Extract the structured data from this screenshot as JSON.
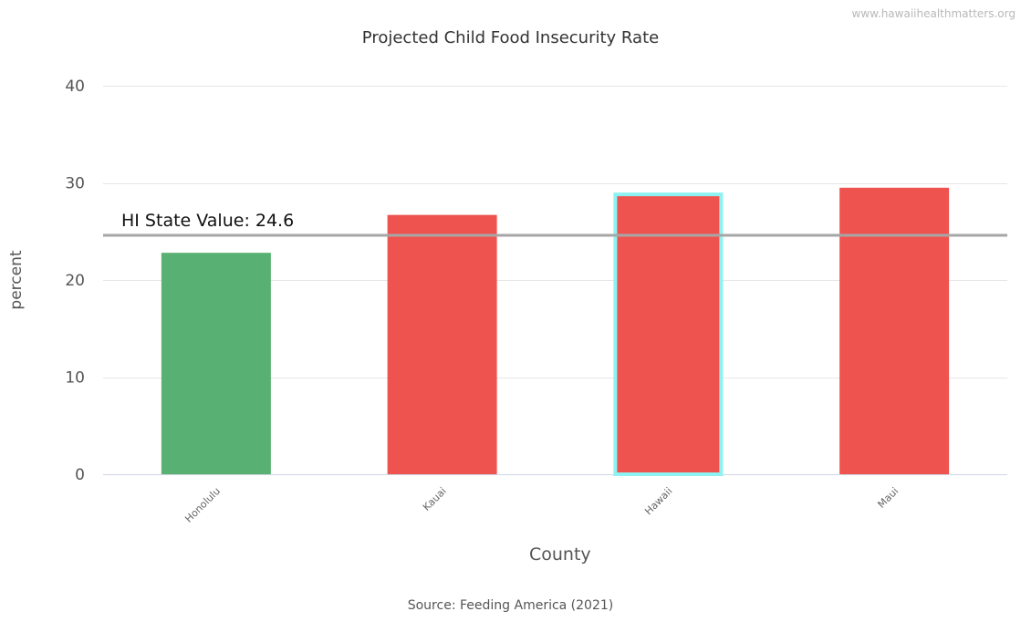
{
  "watermark": "www.hawaiihealthmatters.org",
  "source": "Source: Feeding America (2021)",
  "chart_data": {
    "type": "bar",
    "title": "Projected Child Food Insecurity Rate",
    "xlabel": "County",
    "ylabel": "percent",
    "categories": [
      "Honolulu",
      "Kauai",
      "Hawaii",
      "Maui"
    ],
    "values": [
      22.8,
      26.7,
      29.0,
      29.5
    ],
    "bar_colors": [
      "#58b072",
      "#ef5350",
      "#ef5350",
      "#ef5350"
    ],
    "highlighted_category": "Hawaii",
    "highlight_outline_color": "#8ef2f2",
    "ylim": [
      0,
      40
    ],
    "yticks": [
      0,
      10,
      20,
      30,
      40
    ],
    "grid": true,
    "reference_line": {
      "label": "HI State Value: 24.6",
      "value": 24.6,
      "color": "#a6a6a6"
    }
  }
}
